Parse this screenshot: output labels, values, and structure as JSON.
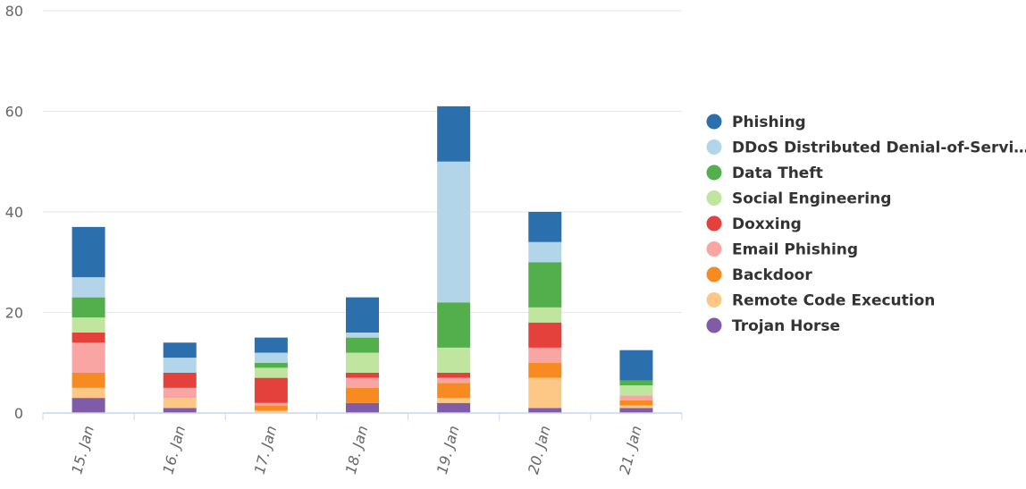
{
  "chart_data": {
    "type": "bar",
    "stacked": true,
    "title": "",
    "xlabel": "",
    "ylabel": "",
    "categories": [
      "15. Jan",
      "16. Jan",
      "17. Jan",
      "18. Jan",
      "19. Jan",
      "20. Jan",
      "21. Jan"
    ],
    "ylim": [
      0,
      80
    ],
    "yticks": [
      0,
      20,
      40,
      60,
      80
    ],
    "grid": true,
    "legend_position": "right",
    "series": [
      {
        "name": "Trojan Horse",
        "color": "#7f5ba8",
        "values": [
          3,
          1,
          0,
          2,
          2,
          1,
          1
        ]
      },
      {
        "name": "Remote Code Execution",
        "color": "#fdc886",
        "values": [
          2,
          2,
          0.5,
          0,
          1,
          6,
          0.5
        ]
      },
      {
        "name": "Backdoor",
        "color": "#f78b22",
        "values": [
          3,
          0,
          1,
          3,
          3,
          3,
          1
        ]
      },
      {
        "name": "Email Phishing",
        "color": "#f8a5a4",
        "values": [
          6,
          2,
          0.5,
          2,
          1,
          3,
          1
        ]
      },
      {
        "name": "Doxxing",
        "color": "#e4403c",
        "values": [
          2,
          3,
          5,
          1,
          1,
          5,
          0
        ]
      },
      {
        "name": "Social Engineering",
        "color": "#bfe59f",
        "values": [
          3,
          0,
          2,
          4,
          5,
          3,
          2
        ]
      },
      {
        "name": "Data Theft",
        "color": "#52af4c",
        "values": [
          4,
          0,
          1,
          3,
          9,
          9,
          1
        ]
      },
      {
        "name": "DDoS Distributed Denial-of-Servi…",
        "color": "#b3d5ea",
        "values": [
          4,
          3,
          2,
          1,
          28,
          4,
          0
        ]
      },
      {
        "name": "Phishing",
        "color": "#2b6fad",
        "values": [
          10,
          3,
          3,
          7,
          11,
          6,
          6
        ]
      }
    ]
  }
}
